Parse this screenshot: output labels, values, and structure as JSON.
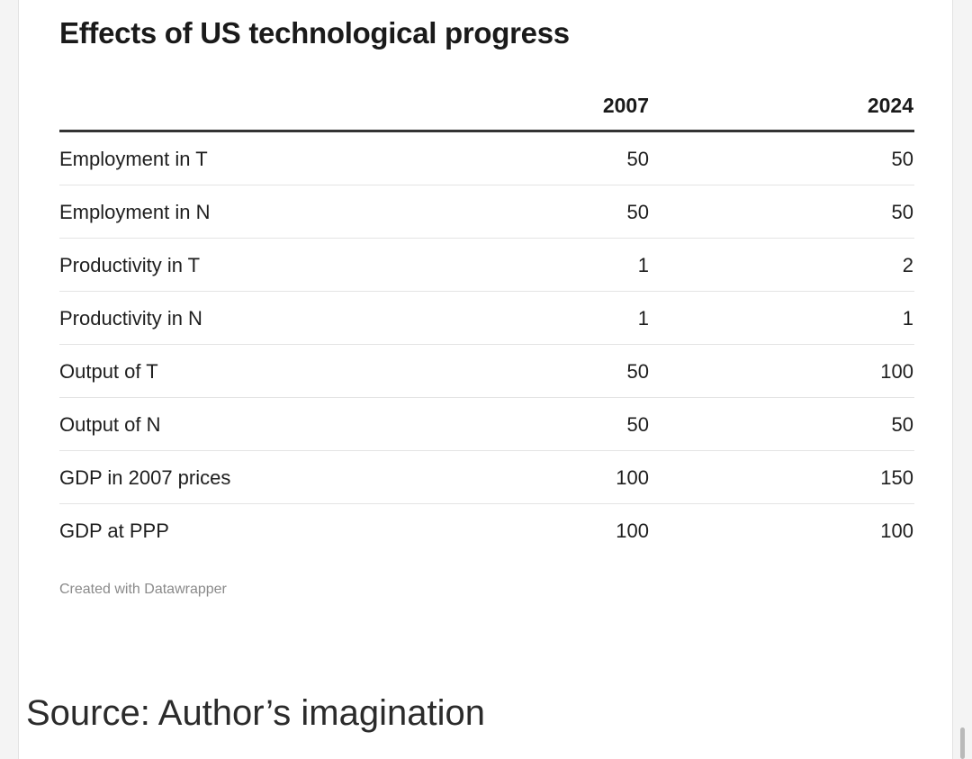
{
  "chart_data": {
    "type": "table",
    "title": "Effects of US technological progress",
    "columns": [
      "2007",
      "2024"
    ],
    "rows": [
      {
        "label": "Employment in T",
        "values": [
          "50",
          "50"
        ]
      },
      {
        "label": "Employment in N",
        "values": [
          "50",
          "50"
        ]
      },
      {
        "label": "Productivity in T",
        "values": [
          "1",
          "2"
        ]
      },
      {
        "label": "Productivity in N",
        "values": [
          "1",
          "1"
        ]
      },
      {
        "label": "Output of T",
        "values": [
          "50",
          "100"
        ]
      },
      {
        "label": "Output of N",
        "values": [
          "50",
          "50"
        ]
      },
      {
        "label": "GDP in 2007 prices",
        "values": [
          "100",
          "150"
        ]
      },
      {
        "label": "GDP at PPP",
        "values": [
          "100",
          "100"
        ]
      }
    ],
    "credit": "Created with Datawrapper"
  },
  "caption": "Source: Author’s imagination"
}
